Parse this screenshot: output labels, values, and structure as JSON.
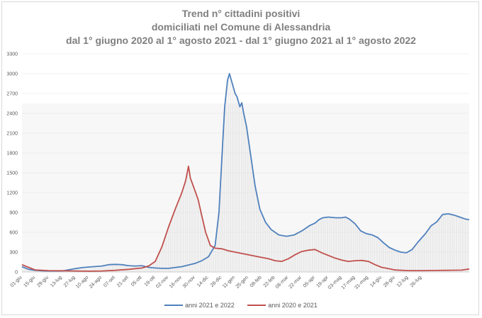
{
  "title_lines": [
    "Trend n° cittadini positivi",
    "domiciliati nel Comune di Alessandria",
    "dal 1° giugno 2020 al 1° agosto 2021 - dal 1° giugno 2021 al 1° agosto 2022"
  ],
  "chart_data": {
    "type": "line",
    "title": "Trend n° cittadini positivi domiciliati nel Comune di Alessandria dal 1° giugno 2020 al 1° agosto 2021 - dal 1° giugno 2021 al 1° agosto 2022",
    "ylim": [
      0,
      3300
    ],
    "y_ticks": [
      0,
      300,
      600,
      900,
      1200,
      1500,
      1800,
      2100,
      2400,
      2700,
      3000,
      3300
    ],
    "x_ticks": [
      "01-giu",
      "15-giu",
      "29-giu",
      "13-lug",
      "27-lug",
      "10-ago",
      "24-ago",
      "07-set",
      "21-set",
      "05-ott",
      "19-ott",
      "02-nov",
      "16-nov",
      "30-nov",
      "14-dic",
      "28-dic",
      "11-gen",
      "25-gen",
      "08-feb",
      "22-feb",
      "08-mar",
      "22-mar",
      "05-apr",
      "19-apr",
      "03-mag",
      "17-mag",
      "31-mag",
      "14-giu",
      "28-giu",
      "12-lug",
      "26-lug"
    ],
    "x": [
      0,
      14,
      28,
      42,
      56,
      70,
      84,
      98,
      112,
      126,
      140,
      154,
      168,
      182,
      196,
      210,
      224,
      238,
      252,
      266,
      280,
      294,
      308,
      322,
      336,
      350,
      364,
      378,
      392,
      406,
      420
    ],
    "legend_position": "bottom",
    "series": [
      {
        "name": "anni 2021 e 2022",
        "color": "#4f81bd",
        "points": [
          [
            0,
            80
          ],
          [
            7,
            40
          ],
          [
            14,
            25
          ],
          [
            21,
            18
          ],
          [
            28,
            15
          ],
          [
            42,
            15
          ],
          [
            56,
            50
          ],
          [
            63,
            65
          ],
          [
            70,
            75
          ],
          [
            84,
            90
          ],
          [
            91,
            110
          ],
          [
            98,
            115
          ],
          [
            105,
            110
          ],
          [
            112,
            95
          ],
          [
            119,
            90
          ],
          [
            126,
            95
          ],
          [
            133,
            70
          ],
          [
            140,
            60
          ],
          [
            147,
            55
          ],
          [
            154,
            55
          ],
          [
            168,
            80
          ],
          [
            182,
            130
          ],
          [
            189,
            170
          ],
          [
            196,
            230
          ],
          [
            203,
            400
          ],
          [
            207,
            900
          ],
          [
            210,
            1700
          ],
          [
            213,
            2500
          ],
          [
            216,
            2900
          ],
          [
            218,
            3000
          ],
          [
            221,
            2850
          ],
          [
            224,
            2700
          ],
          [
            226,
            2650
          ],
          [
            229,
            2500
          ],
          [
            231,
            2560
          ],
          [
            233,
            2400
          ],
          [
            236,
            2200
          ],
          [
            240,
            1800
          ],
          [
            245,
            1300
          ],
          [
            250,
            950
          ],
          [
            256,
            750
          ],
          [
            262,
            640
          ],
          [
            270,
            560
          ],
          [
            278,
            540
          ],
          [
            286,
            560
          ],
          [
            294,
            620
          ],
          [
            302,
            700
          ],
          [
            305,
            720
          ],
          [
            308,
            740
          ],
          [
            312,
            790
          ],
          [
            316,
            820
          ],
          [
            322,
            830
          ],
          [
            330,
            820
          ],
          [
            336,
            820
          ],
          [
            340,
            830
          ],
          [
            344,
            800
          ],
          [
            350,
            730
          ],
          [
            356,
            620
          ],
          [
            362,
            580
          ],
          [
            368,
            560
          ],
          [
            374,
            520
          ],
          [
            380,
            440
          ],
          [
            386,
            370
          ],
          [
            392,
            330
          ],
          [
            398,
            300
          ],
          [
            404,
            290
          ],
          [
            410,
            340
          ],
          [
            416,
            450
          ],
          [
            424,
            580
          ],
          [
            430,
            700
          ],
          [
            436,
            760
          ],
          [
            442,
            870
          ],
          [
            448,
            880
          ],
          [
            454,
            860
          ],
          [
            460,
            830
          ],
          [
            466,
            800
          ],
          [
            470,
            790
          ]
        ]
      },
      {
        "name": "anni 2020 e 2021",
        "color": "#c0504d",
        "points": [
          [
            0,
            110
          ],
          [
            7,
            70
          ],
          [
            14,
            30
          ],
          [
            28,
            20
          ],
          [
            42,
            18
          ],
          [
            56,
            15
          ],
          [
            70,
            12
          ],
          [
            84,
            15
          ],
          [
            98,
            25
          ],
          [
            112,
            40
          ],
          [
            126,
            60
          ],
          [
            133,
            90
          ],
          [
            140,
            160
          ],
          [
            147,
            380
          ],
          [
            154,
            680
          ],
          [
            161,
            950
          ],
          [
            168,
            1200
          ],
          [
            172,
            1380
          ],
          [
            175,
            1600
          ],
          [
            177,
            1420
          ],
          [
            180,
            1300
          ],
          [
            185,
            1100
          ],
          [
            189,
            850
          ],
          [
            193,
            600
          ],
          [
            198,
            400
          ],
          [
            203,
            360
          ],
          [
            210,
            350
          ],
          [
            217,
            320
          ],
          [
            224,
            300
          ],
          [
            231,
            280
          ],
          [
            238,
            260
          ],
          [
            245,
            240
          ],
          [
            252,
            220
          ],
          [
            259,
            200
          ],
          [
            266,
            170
          ],
          [
            273,
            160
          ],
          [
            280,
            200
          ],
          [
            287,
            260
          ],
          [
            294,
            310
          ],
          [
            301,
            330
          ],
          [
            308,
            340
          ],
          [
            315,
            290
          ],
          [
            322,
            250
          ],
          [
            329,
            210
          ],
          [
            336,
            180
          ],
          [
            343,
            160
          ],
          [
            350,
            170
          ],
          [
            357,
            175
          ],
          [
            364,
            160
          ],
          [
            371,
            110
          ],
          [
            378,
            70
          ],
          [
            385,
            50
          ],
          [
            392,
            30
          ],
          [
            406,
            20
          ],
          [
            420,
            20
          ],
          [
            434,
            22
          ],
          [
            448,
            25
          ],
          [
            462,
            28
          ],
          [
            470,
            45
          ]
        ]
      }
    ]
  }
}
